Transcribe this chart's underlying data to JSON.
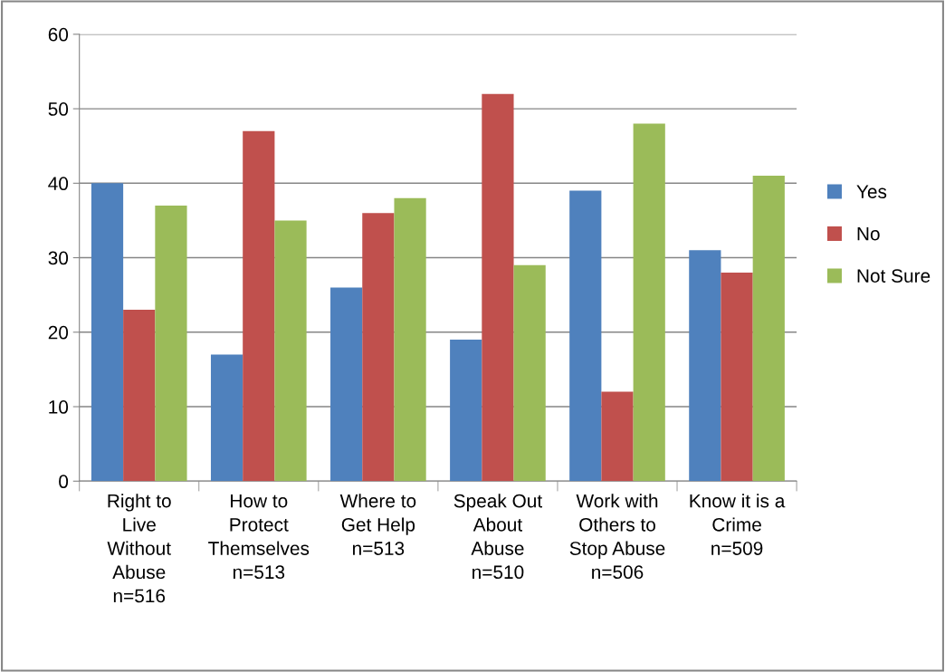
{
  "chart_data": {
    "type": "bar",
    "categories": [
      "Right to\nLive\nWithout\nAbuse\nn=516",
      "How to\nProtect\nThemselves\nn=513",
      "Where to\nGet Help\nn=513",
      "Speak Out\nAbout\nAbuse\nn=510",
      "Work with\nOthers to\nStop Abuse\nn=506",
      "Know it is a\nCrime\nn=509"
    ],
    "series": [
      {
        "name": "Yes",
        "color": "#4f81bd",
        "values": [
          40,
          17,
          26,
          19,
          39,
          31
        ]
      },
      {
        "name": "No",
        "color": "#c0504d",
        "values": [
          23,
          47,
          36,
          52,
          12,
          28
        ]
      },
      {
        "name": "Not Sure",
        "color": "#9bbb59",
        "values": [
          37,
          35,
          38,
          29,
          48,
          41
        ]
      }
    ],
    "ylim": [
      0,
      60
    ],
    "yticks": [
      0,
      10,
      20,
      30,
      40,
      50,
      60
    ],
    "grid": "y",
    "legend": "right"
  }
}
